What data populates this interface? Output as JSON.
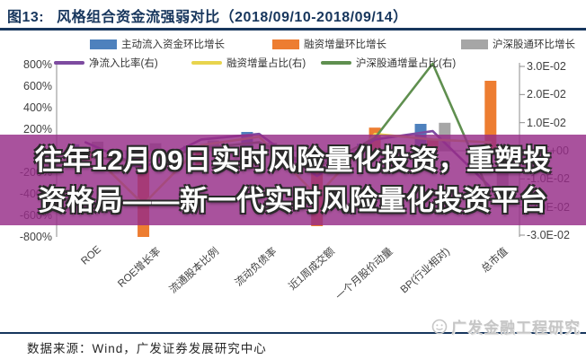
{
  "figure": {
    "label": "图13:",
    "title": "风格组合资金流强弱对比（2018/09/10-2018/09/14）"
  },
  "overlay": {
    "line1": "往年12月09日实时风险量化投资，重塑投",
    "line2": "资格局——新一代实时风险量化投资平台",
    "band_color": "#962c88"
  },
  "source": {
    "text": "数据来源：Wind，广发证券发展研究中心"
  },
  "watermark": {
    "text": "广发金融工程研究",
    "icon": "smiley-logo-icon"
  },
  "chart_data": {
    "type": "bar",
    "title": "风格组合资金流强弱对比（2018/09/10-2018/09/14）",
    "categories": [
      "ROE",
      "ROE增长率",
      "流通股本比例",
      "流动负债率",
      "近1周成交额",
      "一个月股价动量",
      "BP(行业相对)",
      "总市值"
    ],
    "series": [
      {
        "name": "主动流入资金环比增长",
        "type": "bar",
        "axis": "left",
        "color": "#4e81bd",
        "values_pct": [
          60,
          -150,
          45,
          175,
          -120,
          65,
          250,
          -200
        ]
      },
      {
        "name": "融资增量环比增长",
        "type": "bar",
        "axis": "left",
        "color": "#ed7d31",
        "values_pct": [
          -90,
          -800,
          -130,
          -60,
          -700,
          215,
          110,
          650
        ]
      },
      {
        "name": "沪深股通环比增长",
        "type": "bar",
        "axis": "left",
        "color": "#a6a6a6",
        "values_pct": [
          85,
          70,
          95,
          75,
          -85,
          -95,
          260,
          -380
        ]
      },
      {
        "name": "净流入比率(右)",
        "type": "line",
        "axis": "right",
        "color": "#7d4ba0",
        "values_e2": [
          0.3,
          -0.6,
          0.4,
          0.6,
          -0.9,
          0.4,
          0.7,
          -1.3
        ]
      },
      {
        "name": "融资增量占比(右)",
        "type": "line",
        "axis": "right",
        "color": "#e8d44d",
        "values_e2": [
          0.1,
          -1.9,
          0.2,
          0.5,
          -1.6,
          0.6,
          0.4,
          0.3
        ]
      },
      {
        "name": "沪深股通增量占比(右)",
        "type": "line",
        "axis": "right",
        "color": "#5f8f4f",
        "values_e2": [
          -0.2,
          -0.4,
          0.1,
          0.3,
          -0.6,
          0.45,
          3.1,
          -1.6
        ]
      }
    ],
    "left_axis": {
      "ticks": [
        "800%",
        "600%",
        "400%",
        "200%",
        "0%",
        "-200%",
        "-400%",
        "-600%",
        "-800%"
      ],
      "values": [
        800,
        600,
        400,
        200,
        0,
        -200,
        -400,
        -600,
        -800
      ],
      "range": [
        -800,
        800
      ],
      "unit": "%"
    },
    "right_axis": {
      "ticks": [
        "3.0E-02",
        "2.0E-02",
        "1.0E-02",
        "0.0E+00",
        "-1.0E-02",
        "-2.0E-02",
        "-3.0E-02"
      ],
      "values": [
        3,
        2,
        1,
        0,
        -1,
        -2,
        -3
      ],
      "range": [
        -3,
        3
      ],
      "unit": "E-02"
    },
    "legend_position": "top",
    "grid": false
  }
}
